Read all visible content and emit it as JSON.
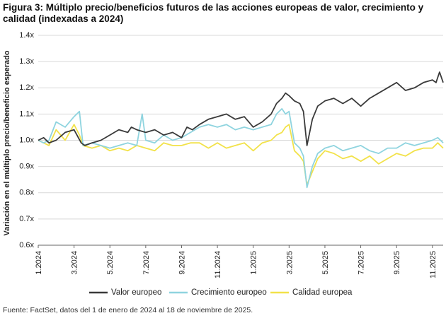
{
  "title": "Figura 3: Múltiplo precio/beneficios futuros de las acciones europeas de valor, crecimiento y calidad (indexadas a 2024)",
  "source": "Fuente: FactSet, datos del 1 de enero de 2024 al 18 de noviembre de 2025.",
  "chart_data": {
    "type": "line",
    "ylabel": "Variación en el múltiplo precio/beneficio esperado",
    "xlabel": "",
    "ylim": [
      0.6,
      1.4
    ],
    "yticks": [
      "0.6x",
      "0.7x",
      "0.8x",
      "0.9x",
      "1.0x",
      "1.1x",
      "1.2x",
      "1.3x",
      "1.4x"
    ],
    "xticks": [
      "1.2024",
      "3.2024",
      "5.2024",
      "7.2024",
      "9.2024",
      "11.2024",
      "1.2025",
      "3.2025",
      "5.2025",
      "7.2025",
      "9.2025",
      "11.2025"
    ],
    "xrange_months": [
      0,
      22.6
    ],
    "grid": "horizontal",
    "legend_position": "bottom",
    "series": [
      {
        "name": "Valor europeo",
        "color": "#3a3a3a",
        "x": [
          0,
          0.3,
          0.6,
          1.0,
          1.5,
          2.0,
          2.4,
          2.6,
          3.0,
          3.5,
          4.0,
          4.5,
          5.0,
          5.2,
          5.5,
          6.0,
          6.5,
          7.0,
          7.5,
          8.0,
          8.3,
          8.6,
          9.0,
          9.5,
          10.0,
          10.5,
          11.0,
          11.5,
          12.0,
          12.5,
          13.0,
          13.3,
          13.6,
          13.8,
          14.0,
          14.3,
          14.6,
          14.8,
          15.0,
          15.3,
          15.6,
          16.0,
          16.5,
          17.0,
          17.5,
          18.0,
          18.5,
          19.0,
          19.5,
          20.0,
          20.5,
          21.0,
          21.5,
          22.0,
          22.2,
          22.4,
          22.6
        ],
        "values": [
          1.0,
          1.01,
          0.99,
          1.0,
          1.03,
          1.04,
          0.99,
          0.98,
          0.99,
          1.0,
          1.02,
          1.04,
          1.03,
          1.05,
          1.04,
          1.03,
          1.04,
          1.02,
          1.03,
          1.01,
          1.05,
          1.04,
          1.06,
          1.08,
          1.09,
          1.1,
          1.08,
          1.09,
          1.05,
          1.07,
          1.1,
          1.14,
          1.16,
          1.18,
          1.17,
          1.15,
          1.14,
          1.11,
          0.98,
          1.08,
          1.13,
          1.15,
          1.16,
          1.14,
          1.16,
          1.13,
          1.16,
          1.18,
          1.2,
          1.22,
          1.19,
          1.2,
          1.22,
          1.23,
          1.22,
          1.26,
          1.22
        ]
      },
      {
        "name": "Crecimiento europeo",
        "color": "#8fd4df",
        "x": [
          0,
          0.3,
          0.6,
          1.0,
          1.5,
          2.0,
          2.3,
          2.5,
          3.0,
          3.5,
          4.0,
          4.5,
          5.0,
          5.5,
          5.8,
          6.0,
          6.5,
          7.0,
          7.5,
          8.0,
          8.5,
          9.0,
          9.5,
          10.0,
          10.5,
          11.0,
          11.5,
          12.0,
          12.5,
          13.0,
          13.3,
          13.6,
          13.8,
          14.0,
          14.3,
          14.6,
          14.8,
          15.0,
          15.3,
          15.6,
          16.0,
          16.5,
          17.0,
          17.5,
          18.0,
          18.5,
          19.0,
          19.5,
          20.0,
          20.5,
          21.0,
          21.5,
          22.0,
          22.3,
          22.6
        ],
        "values": [
          1.0,
          0.99,
          1.0,
          1.07,
          1.05,
          1.09,
          1.11,
          0.98,
          0.99,
          0.98,
          0.97,
          0.98,
          0.99,
          0.98,
          1.1,
          1.0,
          0.99,
          1.02,
          1.0,
          1.01,
          1.03,
          1.05,
          1.06,
          1.05,
          1.06,
          1.04,
          1.05,
          1.04,
          1.05,
          1.06,
          1.1,
          1.12,
          1.1,
          1.11,
          0.99,
          0.97,
          0.94,
          0.82,
          0.9,
          0.95,
          0.97,
          0.98,
          0.96,
          0.97,
          0.98,
          0.96,
          0.95,
          0.97,
          0.97,
          0.99,
          0.98,
          0.99,
          1.0,
          1.01,
          0.99
        ]
      },
      {
        "name": "Calidad europea",
        "color": "#f2e24a",
        "x": [
          0,
          0.3,
          0.6,
          1.0,
          1.5,
          2.0,
          2.3,
          2.5,
          3.0,
          3.5,
          4.0,
          4.5,
          5.0,
          5.5,
          6.0,
          6.5,
          7.0,
          7.5,
          8.0,
          8.5,
          9.0,
          9.5,
          10.0,
          10.5,
          11.0,
          11.5,
          12.0,
          12.5,
          13.0,
          13.3,
          13.6,
          13.8,
          14.0,
          14.3,
          14.6,
          14.8,
          15.0,
          15.3,
          15.6,
          16.0,
          16.5,
          17.0,
          17.5,
          18.0,
          18.5,
          19.0,
          19.5,
          20.0,
          20.5,
          21.0,
          21.5,
          22.0,
          22.3,
          22.6
        ],
        "values": [
          1.0,
          0.99,
          0.98,
          1.04,
          1.0,
          1.06,
          1.02,
          0.98,
          0.97,
          0.98,
          0.96,
          0.97,
          0.96,
          0.98,
          0.97,
          0.96,
          0.99,
          0.98,
          0.98,
          0.99,
          0.99,
          0.97,
          0.99,
          0.97,
          0.98,
          0.99,
          0.96,
          0.99,
          1.0,
          1.02,
          1.03,
          1.05,
          1.06,
          0.96,
          0.94,
          0.92,
          0.83,
          0.88,
          0.93,
          0.96,
          0.95,
          0.93,
          0.94,
          0.92,
          0.94,
          0.91,
          0.93,
          0.95,
          0.94,
          0.96,
          0.97,
          0.97,
          0.99,
          0.97
        ]
      }
    ]
  }
}
